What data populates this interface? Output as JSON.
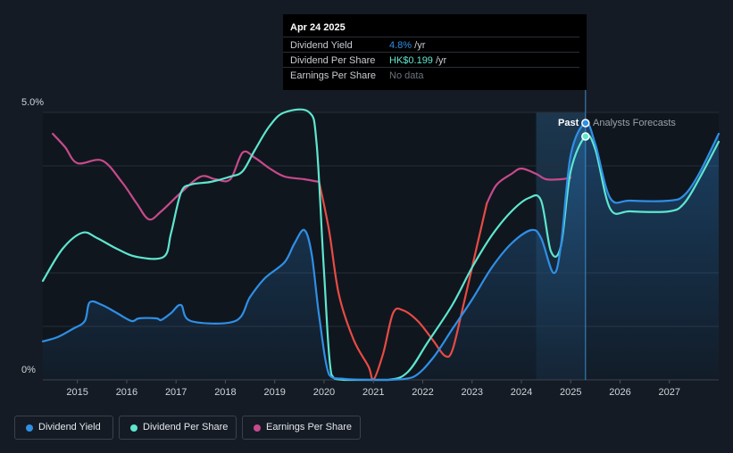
{
  "chart_data": {
    "type": "line",
    "y_axis": {
      "top_label": "5.0%",
      "bottom_label": "0%",
      "ylim": [
        0,
        5.0
      ],
      "unit": "%"
    },
    "x_axis": {
      "ticks": [
        "2015",
        "2016",
        "2017",
        "2018",
        "2019",
        "2020",
        "2021",
        "2022",
        "2023",
        "2024",
        "2025",
        "2026",
        "2027"
      ],
      "xlim": [
        2014.3,
        2028.0
      ]
    },
    "regions": {
      "past_label": "Past",
      "forecast_label": "Analysts Forecasts",
      "forecast_start": 2024.3,
      "divider": 2025.3
    },
    "series": [
      {
        "name": "Dividend Yield",
        "color": "#2f8fe6",
        "fill": true,
        "points": [
          [
            2014.3,
            0.72
          ],
          [
            2014.6,
            0.8
          ],
          [
            2014.9,
            0.95
          ],
          [
            2015.15,
            1.1
          ],
          [
            2015.25,
            1.45
          ],
          [
            2015.5,
            1.4
          ],
          [
            2015.8,
            1.25
          ],
          [
            2016.1,
            1.1
          ],
          [
            2016.25,
            1.15
          ],
          [
            2016.6,
            1.15
          ],
          [
            2016.7,
            1.12
          ],
          [
            2016.9,
            1.25
          ],
          [
            2017.1,
            1.4
          ],
          [
            2017.3,
            1.1
          ],
          [
            2018.2,
            1.1
          ],
          [
            2018.5,
            1.55
          ],
          [
            2018.8,
            1.9
          ],
          [
            2019.2,
            2.2
          ],
          [
            2019.4,
            2.55
          ],
          [
            2019.6,
            2.8
          ],
          [
            2019.75,
            2.35
          ],
          [
            2019.9,
            1.2
          ],
          [
            2020.1,
            0.1
          ],
          [
            2020.4,
            0.02
          ],
          [
            2021.0,
            0
          ],
          [
            2021.3,
            0
          ],
          [
            2021.8,
            0.05
          ],
          [
            2022.2,
            0.4
          ],
          [
            2022.6,
            0.95
          ],
          [
            2023.0,
            1.5
          ],
          [
            2023.4,
            2.1
          ],
          [
            2023.8,
            2.55
          ],
          [
            2024.2,
            2.8
          ],
          [
            2024.4,
            2.65
          ],
          [
            2024.65,
            2.0
          ],
          [
            2024.8,
            2.5
          ],
          [
            2025.0,
            4.2
          ],
          [
            2025.3,
            4.8
          ],
          [
            2025.5,
            4.4
          ],
          [
            2025.8,
            3.4
          ],
          [
            2026.2,
            3.35
          ],
          [
            2027.0,
            3.35
          ],
          [
            2027.3,
            3.45
          ],
          [
            2027.6,
            3.85
          ],
          [
            2028.0,
            4.6
          ]
        ]
      },
      {
        "name": "Dividend Per Share",
        "color": "#5ee6cf",
        "fill": false,
        "points": [
          [
            2014.3,
            1.85
          ],
          [
            2014.7,
            2.45
          ],
          [
            2015.1,
            2.75
          ],
          [
            2015.4,
            2.65
          ],
          [
            2015.8,
            2.45
          ],
          [
            2016.2,
            2.3
          ],
          [
            2016.75,
            2.3
          ],
          [
            2016.9,
            2.75
          ],
          [
            2017.1,
            3.5
          ],
          [
            2017.3,
            3.65
          ],
          [
            2017.7,
            3.7
          ],
          [
            2018.1,
            3.8
          ],
          [
            2018.35,
            3.9
          ],
          [
            2018.6,
            4.3
          ],
          [
            2018.9,
            4.75
          ],
          [
            2019.2,
            5.0
          ],
          [
            2019.7,
            5.0
          ],
          [
            2019.85,
            4.4
          ],
          [
            2020.0,
            2.0
          ],
          [
            2020.15,
            0.1
          ],
          [
            2020.4,
            0
          ],
          [
            2021.3,
            0
          ],
          [
            2021.7,
            0.15
          ],
          [
            2022.1,
            0.7
          ],
          [
            2022.6,
            1.4
          ],
          [
            2023.0,
            2.1
          ],
          [
            2023.4,
            2.7
          ],
          [
            2023.8,
            3.15
          ],
          [
            2024.15,
            3.4
          ],
          [
            2024.4,
            3.35
          ],
          [
            2024.6,
            2.4
          ],
          [
            2024.8,
            2.5
          ],
          [
            2025.0,
            3.9
          ],
          [
            2025.3,
            4.55
          ],
          [
            2025.5,
            4.3
          ],
          [
            2025.8,
            3.2
          ],
          [
            2026.2,
            3.15
          ],
          [
            2027.0,
            3.15
          ],
          [
            2027.3,
            3.3
          ],
          [
            2027.6,
            3.75
          ],
          [
            2028.0,
            4.45
          ]
        ]
      },
      {
        "name": "Earnings Per Share",
        "color": "#c64a8c",
        "fill": false,
        "points": [
          [
            2014.5,
            4.6
          ],
          [
            2014.75,
            4.35
          ],
          [
            2015.0,
            4.05
          ],
          [
            2015.5,
            4.1
          ],
          [
            2015.9,
            3.7
          ],
          [
            2016.2,
            3.3
          ],
          [
            2016.45,
            3.0
          ],
          [
            2016.7,
            3.15
          ],
          [
            2017.1,
            3.5
          ],
          [
            2017.5,
            3.8
          ],
          [
            2017.8,
            3.75
          ],
          [
            2018.1,
            3.75
          ],
          [
            2018.35,
            4.25
          ],
          [
            2018.6,
            4.15
          ],
          [
            2018.9,
            3.95
          ],
          [
            2019.2,
            3.8
          ],
          [
            2019.6,
            3.75
          ],
          [
            2019.9,
            3.7
          ]
        ]
      },
      {
        "name": "Earnings Per Share (negative trend)",
        "color": "#e84b44",
        "fill": false,
        "points": [
          [
            2019.9,
            3.7
          ],
          [
            2020.1,
            2.8
          ],
          [
            2020.3,
            1.6
          ],
          [
            2020.6,
            0.75
          ],
          [
            2020.9,
            0.25
          ],
          [
            2021.0,
            0
          ],
          [
            2021.2,
            0.5
          ],
          [
            2021.4,
            1.25
          ],
          [
            2021.6,
            1.3
          ],
          [
            2021.9,
            1.1
          ],
          [
            2022.2,
            0.75
          ],
          [
            2022.45,
            0.45
          ],
          [
            2022.6,
            0.55
          ],
          [
            2022.8,
            1.3
          ],
          [
            2023.1,
            2.5
          ],
          [
            2023.3,
            3.3
          ]
        ]
      },
      {
        "name": "Earnings Per Share (recovery)",
        "color": "#c64a8c",
        "fill": false,
        "points": [
          [
            2023.3,
            3.3
          ],
          [
            2023.5,
            3.65
          ],
          [
            2023.8,
            3.85
          ],
          [
            2024.0,
            3.95
          ],
          [
            2024.3,
            3.85
          ],
          [
            2024.5,
            3.75
          ],
          [
            2024.8,
            3.75
          ],
          [
            2025.0,
            3.78
          ]
        ]
      }
    ],
    "markers": [
      {
        "series": "Dividend Yield",
        "x": 2025.3,
        "y": 4.8,
        "color": "#2f8fe6"
      },
      {
        "series": "Dividend Per Share",
        "x": 2025.3,
        "y": 4.55,
        "color": "#5ee6cf"
      }
    ]
  },
  "tooltip": {
    "date": "Apr 24 2025",
    "rows": [
      {
        "label": "Dividend Yield",
        "value": "4.8%",
        "unit": " /yr",
        "color": "#2f8fe6"
      },
      {
        "label": "Dividend Per Share",
        "value": "HK$0.199",
        "unit": " /yr",
        "color": "#5ee6cf"
      },
      {
        "label": "Earnings Per Share",
        "value": "No data",
        "unit": "",
        "color": "#6b717b"
      }
    ]
  },
  "legend": [
    {
      "label": "Dividend Yield",
      "color": "#2f8fe6"
    },
    {
      "label": "Dividend Per Share",
      "color": "#5ee6cf"
    },
    {
      "label": "Earnings Per Share",
      "color": "#c64a8c"
    }
  ]
}
